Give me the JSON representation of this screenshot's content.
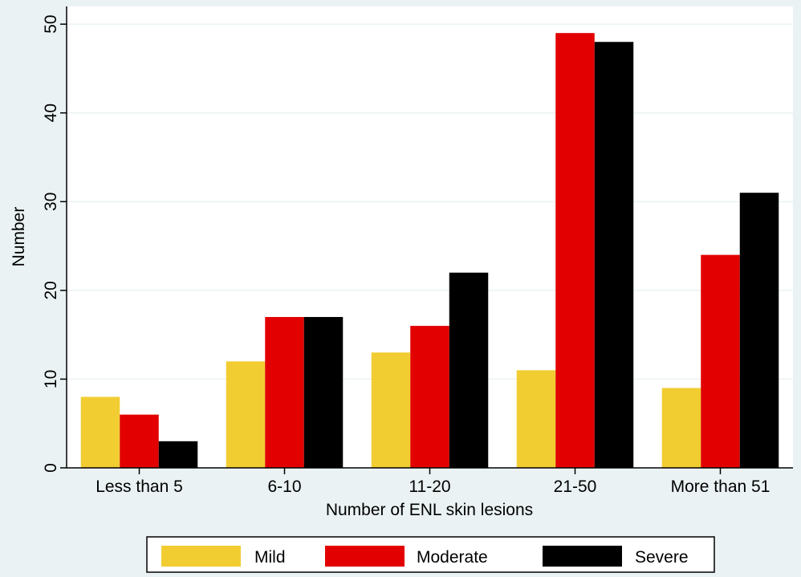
{
  "chart_data": {
    "type": "bar",
    "title": "",
    "xlabel": "Number of ENL skin lesions",
    "ylabel": "Number",
    "categories": [
      "Less than 5",
      "6-10",
      "11-20",
      "21-50",
      "More than 51"
    ],
    "series": [
      {
        "name": "Mild",
        "values": [
          8,
          12,
          13,
          11,
          9
        ],
        "color": "#f2cd32"
      },
      {
        "name": "Moderate",
        "values": [
          6,
          17,
          16,
          49,
          24
        ],
        "color": "#e20000"
      },
      {
        "name": "Severe",
        "values": [
          3,
          17,
          22,
          48,
          31
        ],
        "color": "#000000"
      }
    ],
    "ylim": [
      0,
      52
    ],
    "yticks": [
      0,
      10,
      20,
      30,
      40,
      50
    ],
    "grid": true,
    "legend_position": "bottom",
    "colors": {
      "outer_background": "#eaf2f3",
      "plot_background": "#ffffff",
      "gridline": "#eaf2f3"
    }
  }
}
